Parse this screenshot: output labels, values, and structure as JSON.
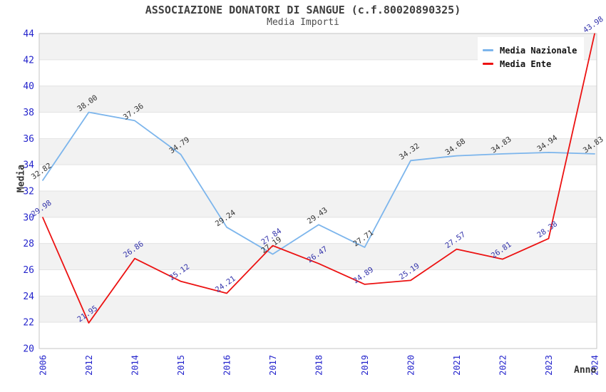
{
  "header": {
    "title": "ASSOCIAZIONE DONATORI DI SANGUE (c.f.80020890325)",
    "subtitle": "Media Importi"
  },
  "legend": {
    "items": [
      {
        "label": "Media Nazionale",
        "color": "#7cb5ec"
      },
      {
        "label": "Media Ente",
        "color": "#ec1212"
      }
    ]
  },
  "axes": {
    "y_title": "Media",
    "x_title": "Anno"
  },
  "chart_data": {
    "type": "line",
    "title": "ASSOCIAZIONE DONATORI DI SANGUE (c.f.80020890325)",
    "subtitle": "Media Importi",
    "xlabel": "Anno",
    "ylabel": "Media",
    "ylim": [
      20,
      44
    ],
    "y_tick_step": 2,
    "grid": "horizontal-bands",
    "legend_position": "top-right",
    "categories": [
      "2006",
      "2012",
      "2014",
      "2015",
      "2016",
      "2017",
      "2018",
      "2019",
      "2020",
      "2021",
      "2022",
      "2023",
      "2024"
    ],
    "series": [
      {
        "name": "Media Nazionale",
        "color": "#7cb5ec",
        "label_color": "#333333",
        "values": [
          32.82,
          38.0,
          37.36,
          34.79,
          29.24,
          27.19,
          29.43,
          27.71,
          34.32,
          34.68,
          34.83,
          34.94,
          34.83
        ]
      },
      {
        "name": "Media Ente",
        "color": "#ec1212",
        "label_color": "#3434ab",
        "values": [
          29.98,
          21.95,
          26.86,
          25.12,
          24.21,
          27.84,
          26.47,
          24.89,
          25.19,
          27.57,
          26.81,
          28.38,
          43.98
        ]
      }
    ],
    "colors": {
      "band": "#f2f2f2",
      "gridline": "#e3e3e3",
      "plot_border": "#c6c6c6",
      "tick_label": "#2424cc",
      "title": "#3f3f3f",
      "subtitle": "#4d4d4d"
    }
  }
}
